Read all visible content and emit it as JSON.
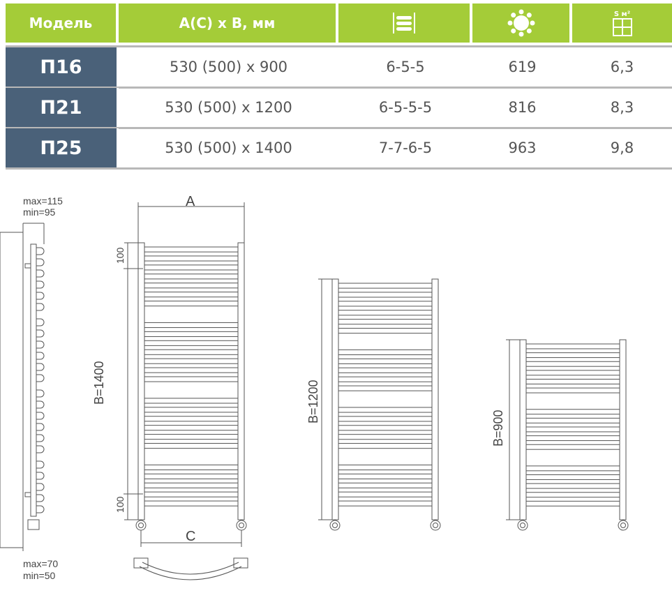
{
  "table": {
    "headers": {
      "model": "Модель",
      "size": "A(C) x B,  мм",
      "sections_icon": "ladder-sections-icon",
      "power_icon": "sun-icon",
      "area_icon": "area-grid-icon",
      "area_label": "S м²"
    },
    "rows": [
      {
        "model": "П16",
        "size": "530 (500) x 900",
        "sections": "6-5-5",
        "power": "619",
        "area": "6,3"
      },
      {
        "model": "П21",
        "size": "530 (500) x 1200",
        "sections": "6-5-5-5",
        "power": "816",
        "area": "8,3"
      },
      {
        "model": "П25",
        "size": "530 (500) x 1400",
        "sections": "7-7-6-5",
        "power": "963",
        "area": "9,8"
      }
    ]
  },
  "drawing": {
    "side": {
      "top_max": "max=115",
      "top_min": "min=95",
      "bottom_max": "max=70",
      "bottom_min": "min=50"
    },
    "front": {
      "a_label": "A",
      "c_label": "C",
      "offset_top": "100",
      "offset_bottom": "100",
      "b1400": "B=1400",
      "b1200": "B=1200",
      "b900": "B=900"
    }
  },
  "colors": {
    "header": "#a4cc38",
    "model": "#4a6179"
  }
}
